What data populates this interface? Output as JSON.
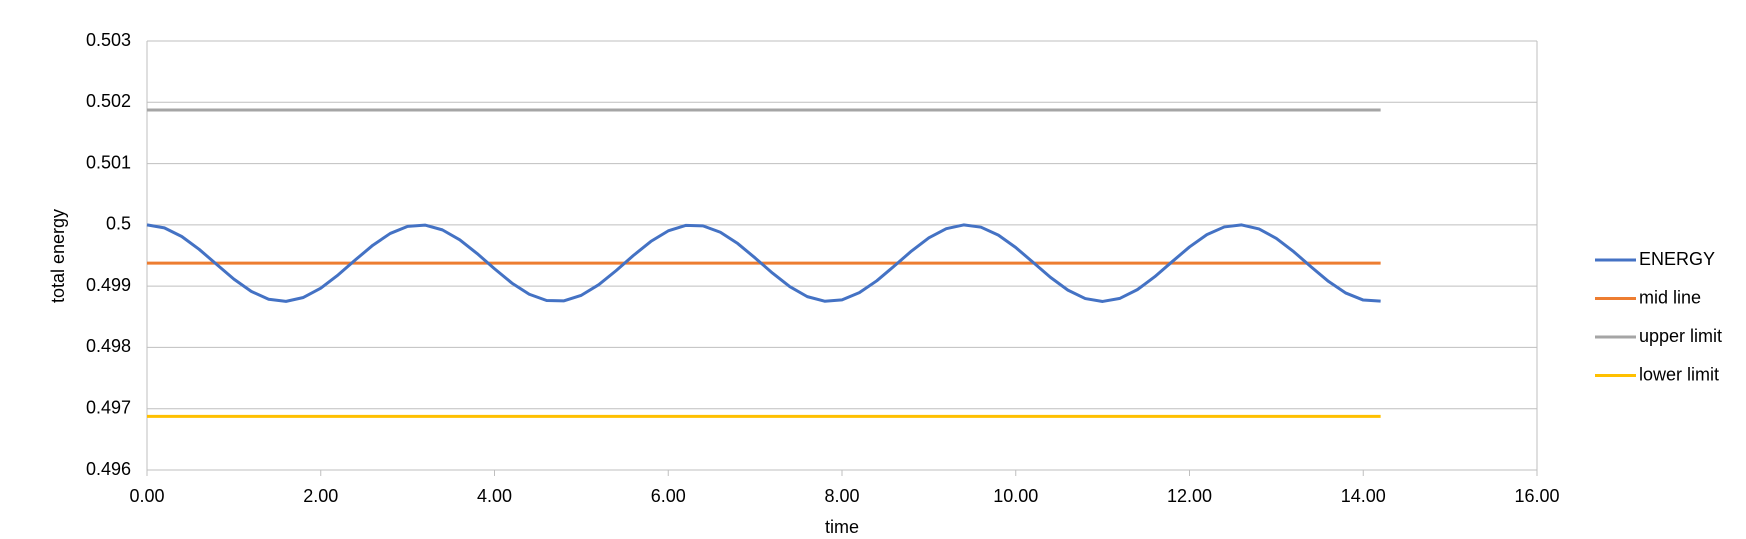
{
  "chart_data": {
    "type": "line",
    "xlabel": "time",
    "ylabel": "total energy",
    "xlim": [
      0,
      16
    ],
    "ylim": [
      0.496,
      0.503
    ],
    "xticks": [
      {
        "value": 0,
        "label": "0.00"
      },
      {
        "value": 2,
        "label": "2.00"
      },
      {
        "value": 4,
        "label": "4.00"
      },
      {
        "value": 6,
        "label": "6.00"
      },
      {
        "value": 8,
        "label": "8.00"
      },
      {
        "value": 10,
        "label": "10.00"
      },
      {
        "value": 12,
        "label": "12.00"
      },
      {
        "value": 14,
        "label": "14.00"
      },
      {
        "value": 16,
        "label": "16.00"
      }
    ],
    "yticks": [
      0.496,
      0.497,
      0.498,
      0.499,
      0.5,
      0.501,
      0.502,
      0.503
    ],
    "grid": true,
    "legend": "right",
    "series": [
      {
        "name": "ENERGY",
        "color": "#4472c4",
        "x": [
          0,
          0.2,
          0.4,
          0.6,
          0.8,
          1,
          1.2,
          1.4,
          1.6,
          1.8,
          2,
          2.2,
          2.4,
          2.6,
          2.8,
          3,
          3.2,
          3.4,
          3.6,
          3.8,
          4,
          4.2,
          4.4,
          4.6,
          4.8,
          5,
          5.2,
          5.4,
          5.6,
          5.8,
          6,
          6.2,
          6.4,
          6.6,
          6.8,
          7,
          7.2,
          7.4,
          7.6,
          7.8,
          8,
          8.2,
          8.4,
          8.6,
          8.8,
          9,
          9.2,
          9.4,
          9.6,
          9.8,
          10,
          10.2,
          10.4,
          10.6,
          10.8,
          11,
          11.2,
          11.4,
          11.6,
          11.8,
          12,
          12.2,
          12.4,
          12.6,
          12.8,
          13,
          13.2,
          13.4,
          13.6,
          13.8,
          14,
          14.2
        ],
        "values": [
          0.5,
          0.499951,
          0.49981,
          0.499601,
          0.499357,
          0.499115,
          0.498914,
          0.498786,
          0.498751,
          0.498815,
          0.498966,
          0.499183,
          0.49943,
          0.499668,
          0.49986,
          0.499975,
          0.499996,
          0.499918,
          0.499756,
          0.499532,
          0.499284,
          0.49905,
          0.498868,
          0.498766,
          0.49876,
          0.498851,
          0.499024,
          0.499253,
          0.499502,
          0.49973,
          0.499902,
          0.499991,
          0.499983,
          0.499879,
          0.499695,
          0.49946,
          0.499213,
          0.498991,
          0.498829,
          0.498754,
          0.498776,
          0.498894,
          0.499087,
          0.499326,
          0.499573,
          0.499788,
          0.499938,
          0.499999,
          0.499962,
          0.499832,
          0.49963,
          0.499388,
          0.499143,
          0.498935,
          0.498797,
          0.49875,
          0.498801,
          0.498943,
          0.499154,
          0.499399,
          0.49964,
          0.49984,
          0.499966,
          0.499999,
          0.499933,
          0.499779,
          0.499562,
          0.499315,
          0.499077,
          0.498887,
          0.498773,
          0.498755
        ]
      },
      {
        "name": "mid line",
        "color": "#ed7d31",
        "x": [
          0,
          14.2
        ],
        "values": [
          0.499375,
          0.499375
        ]
      },
      {
        "name": "upper limit",
        "color": "#a5a5a5",
        "x": [
          0,
          14.2
        ],
        "values": [
          0.501875,
          0.501875
        ]
      },
      {
        "name": "lower limit",
        "color": "#ffc000",
        "x": [
          0,
          14.2
        ],
        "values": [
          0.496875,
          0.496875
        ]
      }
    ]
  }
}
